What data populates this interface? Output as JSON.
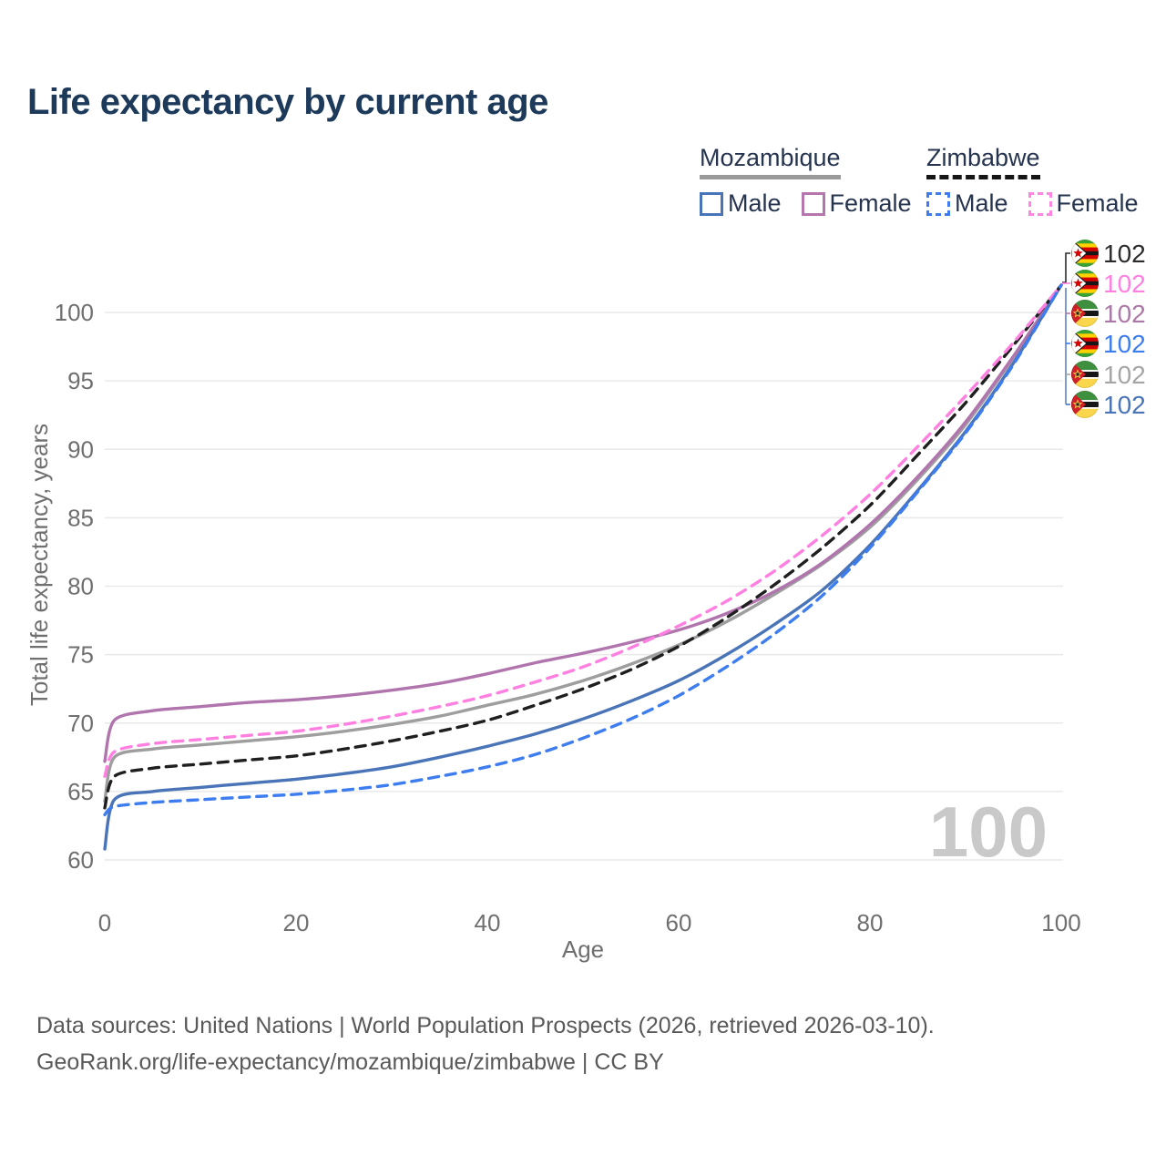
{
  "title": "Life expectancy by current age",
  "legend": {
    "groups": [
      {
        "label": "Mozambique",
        "line_style": "solid",
        "underline_color": "#9a9a9a",
        "items": [
          {
            "label": "Male",
            "color": "#4a74b8"
          },
          {
            "label": "Female",
            "color": "#b576ad"
          }
        ]
      },
      {
        "label": "Zimbabwe",
        "line_style": "dashed",
        "underline_color": "#161616",
        "items": [
          {
            "label": "Male",
            "color": "#3d7df0"
          },
          {
            "label": "Female",
            "color": "#ff85e3"
          }
        ]
      }
    ]
  },
  "chart_data": {
    "type": "line",
    "title": "Life expectancy by current age",
    "xlabel": "Age",
    "ylabel": "Total life expectancy, years",
    "xlim": [
      0,
      100
    ],
    "ylim": [
      60,
      102
    ],
    "x_ticks": [
      0,
      20,
      40,
      60,
      80,
      100
    ],
    "y_ticks": [
      60,
      65,
      70,
      75,
      80,
      85,
      90,
      95,
      100
    ],
    "grid": "horizontal-only",
    "legend_position": "top-right",
    "x": [
      0,
      1,
      5,
      10,
      15,
      20,
      25,
      30,
      35,
      40,
      45,
      50,
      55,
      60,
      65,
      70,
      75,
      80,
      85,
      90,
      95,
      100
    ],
    "series": [
      {
        "name": "Mozambique",
        "sex": "both",
        "color": "#9e9e9e",
        "dashed": false,
        "values": [
          64.3,
          67.5,
          68.1,
          68.4,
          68.7,
          69.0,
          69.4,
          69.9,
          70.5,
          71.3,
          72.1,
          73.1,
          74.3,
          75.7,
          77.4,
          79.4,
          81.6,
          84.3,
          87.8,
          91.8,
          96.7,
          102
        ]
      },
      {
        "name": "Mozambique Female",
        "sex": "female",
        "color": "#b175ae",
        "dashed": false,
        "values": [
          67.2,
          70.2,
          70.9,
          71.2,
          71.5,
          71.7,
          72.0,
          72.4,
          72.9,
          73.6,
          74.4,
          75.1,
          75.9,
          76.8,
          78.0,
          79.6,
          81.7,
          84.5,
          88.0,
          92.0,
          96.8,
          102
        ]
      },
      {
        "name": "Mozambique Male",
        "sex": "male",
        "color": "#4a74b8",
        "dashed": false,
        "values": [
          60.8,
          64.4,
          65.0,
          65.3,
          65.6,
          65.9,
          66.3,
          66.8,
          67.5,
          68.3,
          69.2,
          70.3,
          71.6,
          73.1,
          75.0,
          77.2,
          79.7,
          83.0,
          87.0,
          91.3,
          96.3,
          102
        ]
      },
      {
        "name": "Zimbabwe",
        "sex": "both",
        "color": "#1f1f1f",
        "dashed": true,
        "values": [
          63.8,
          66.1,
          66.7,
          67.0,
          67.3,
          67.6,
          68.1,
          68.7,
          69.4,
          70.2,
          71.3,
          72.5,
          73.9,
          75.6,
          77.7,
          80.1,
          82.8,
          85.9,
          89.6,
          93.4,
          97.6,
          102
        ]
      },
      {
        "name": "Zimbabwe Female",
        "sex": "female",
        "color": "#ff80e1",
        "dashed": true,
        "values": [
          66.1,
          67.9,
          68.5,
          68.8,
          69.1,
          69.4,
          69.9,
          70.5,
          71.2,
          72.0,
          73.0,
          74.1,
          75.5,
          77.1,
          78.9,
          81.1,
          83.7,
          86.7,
          90.2,
          93.9,
          97.8,
          102
        ]
      },
      {
        "name": "Zimbabwe Male",
        "sex": "male",
        "color": "#3d7df0",
        "dashed": true,
        "values": [
          63.3,
          63.9,
          64.2,
          64.4,
          64.6,
          64.8,
          65.1,
          65.5,
          66.1,
          66.8,
          67.7,
          68.9,
          70.3,
          72.0,
          74.1,
          76.5,
          79.3,
          82.8,
          86.9,
          91.2,
          96.2,
          102
        ]
      }
    ],
    "end_value_callouts": [
      {
        "flag": "zimbabwe",
        "series": "Zimbabwe",
        "value": "102",
        "color": "#2b2b2b"
      },
      {
        "flag": "zimbabwe",
        "series": "Zimbabwe Female",
        "value": "102",
        "color": "#ff80e1"
      },
      {
        "flag": "mozambique",
        "series": "Mozambique Female",
        "value": "102",
        "color": "#ab79a8"
      },
      {
        "flag": "zimbabwe",
        "series": "Zimbabwe Male",
        "value": "102",
        "color": "#3d7df0"
      },
      {
        "flag": "mozambique",
        "series": "Mozambique",
        "value": "102",
        "color": "#a5a5a5"
      },
      {
        "flag": "mozambique",
        "series": "Mozambique Male",
        "value": "102",
        "color": "#4a74b8"
      }
    ],
    "watermark": "100"
  },
  "footer": {
    "line1": "Data sources: United Nations | World Population Prospects (2026, retrieved 2026-03-10).",
    "line2": "GeoRank.org/life-expectancy/mozambique/zimbabwe | CC BY"
  }
}
